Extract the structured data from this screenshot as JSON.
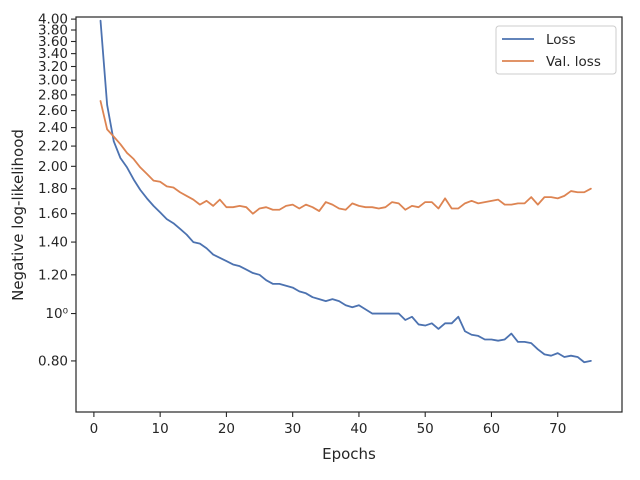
{
  "chart_data": {
    "type": "line",
    "xlabel": "Epochs",
    "ylabel": "Negative log-likelihood",
    "y_scale": "log",
    "xlim": [
      -2.7,
      79.7
    ],
    "ylim": [
      0.629,
      4.04
    ],
    "x_ticks": [
      0,
      10,
      20,
      30,
      40,
      50,
      60,
      70
    ],
    "x_tick_labels": [
      "0",
      "10",
      "20",
      "30",
      "40",
      "50",
      "60",
      "70"
    ],
    "y_ticks": [
      0.8,
      1.0,
      1.2,
      1.4,
      1.6,
      1.8,
      2.0,
      2.2,
      2.4,
      2.6,
      2.8,
      3.0,
      3.2,
      3.4,
      3.6,
      3.8,
      4.0
    ],
    "y_tick_labels": [
      "0.80",
      "10⁰",
      "1.20",
      "1.40",
      "1.60",
      "1.80",
      "2.00",
      "2.20",
      "2.40",
      "2.60",
      "2.80",
      "3.00",
      "3.20",
      "3.40",
      "3.60",
      "3.80",
      "4.00"
    ],
    "grid": false,
    "legend_position": "top-right",
    "x": [
      1,
      2,
      3,
      4,
      5,
      6,
      7,
      8,
      9,
      10,
      11,
      12,
      13,
      14,
      15,
      16,
      17,
      18,
      19,
      20,
      21,
      22,
      23,
      24,
      25,
      26,
      27,
      28,
      29,
      30,
      31,
      32,
      33,
      34,
      35,
      36,
      37,
      38,
      39,
      40,
      41,
      42,
      43,
      44,
      45,
      46,
      47,
      48,
      49,
      50,
      51,
      52,
      53,
      54,
      55,
      56,
      57,
      58,
      59,
      60,
      61,
      62,
      63,
      64,
      65,
      66,
      67,
      68,
      69,
      70,
      71,
      72,
      73,
      74,
      75
    ],
    "series": [
      {
        "name": "Loss",
        "color": "#4c72b0",
        "values": [
          3.97,
          2.67,
          2.25,
          2.08,
          1.99,
          1.88,
          1.79,
          1.72,
          1.66,
          1.61,
          1.56,
          1.53,
          1.49,
          1.45,
          1.4,
          1.39,
          1.36,
          1.32,
          1.3,
          1.28,
          1.26,
          1.25,
          1.23,
          1.21,
          1.2,
          1.17,
          1.15,
          1.15,
          1.14,
          1.13,
          1.11,
          1.1,
          1.08,
          1.07,
          1.06,
          1.07,
          1.06,
          1.04,
          1.03,
          1.04,
          1.02,
          1.0,
          1.0,
          1.0,
          1.0,
          1.0,
          0.97,
          0.985,
          0.95,
          0.945,
          0.955,
          0.93,
          0.955,
          0.955,
          0.985,
          0.92,
          0.905,
          0.9,
          0.885,
          0.885,
          0.88,
          0.885,
          0.91,
          0.875,
          0.875,
          0.87,
          0.845,
          0.825,
          0.82,
          0.83,
          0.815,
          0.82,
          0.815,
          0.795,
          0.8
        ]
      },
      {
        "name": "Val. loss",
        "color": "#dd8452",
        "values": [
          2.72,
          2.38,
          2.3,
          2.22,
          2.13,
          2.07,
          1.99,
          1.93,
          1.87,
          1.86,
          1.82,
          1.81,
          1.77,
          1.74,
          1.71,
          1.67,
          1.7,
          1.66,
          1.71,
          1.65,
          1.65,
          1.66,
          1.65,
          1.6,
          1.64,
          1.65,
          1.63,
          1.63,
          1.66,
          1.67,
          1.64,
          1.67,
          1.65,
          1.62,
          1.69,
          1.67,
          1.64,
          1.63,
          1.68,
          1.66,
          1.65,
          1.65,
          1.64,
          1.65,
          1.69,
          1.68,
          1.63,
          1.66,
          1.65,
          1.69,
          1.69,
          1.64,
          1.72,
          1.64,
          1.64,
          1.68,
          1.7,
          1.68,
          1.69,
          1.7,
          1.71,
          1.67,
          1.67,
          1.68,
          1.68,
          1.73,
          1.67,
          1.73,
          1.73,
          1.72,
          1.74,
          1.78,
          1.77,
          1.77,
          1.8
        ]
      }
    ]
  }
}
